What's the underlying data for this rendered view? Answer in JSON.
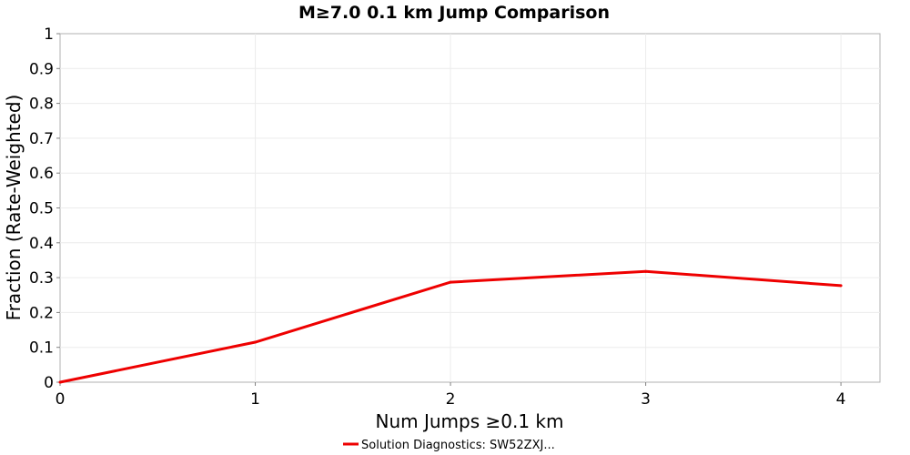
{
  "chart_data": {
    "type": "line",
    "title": "M≥7.0 0.1 km Jump Comparison",
    "xlabel": "Num Jumps ≥0.1 km",
    "ylabel": "Fraction (Rate-Weighted)",
    "xlim": [
      0,
      4.2
    ],
    "ylim": [
      0,
      1
    ],
    "x_ticks": [
      "0",
      "1",
      "2",
      "3",
      "4"
    ],
    "y_ticks": [
      "0",
      "0.1",
      "0.2",
      "0.3",
      "0.4",
      "0.5",
      "0.6",
      "0.7",
      "0.8",
      "0.9",
      "1"
    ],
    "grid": true,
    "legend_position": "bottom-center",
    "series": [
      {
        "name": "Solution Diagnostics: SW52ZXJ...",
        "color": "#ee0000",
        "x": [
          0,
          1,
          2,
          3,
          4
        ],
        "y": [
          0.0,
          0.115,
          0.287,
          0.318,
          0.277
        ]
      }
    ]
  }
}
